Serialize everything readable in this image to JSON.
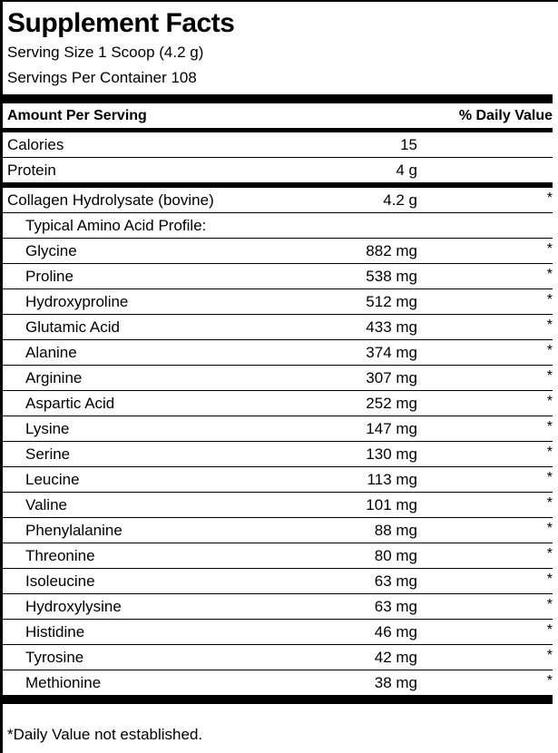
{
  "label": {
    "title": "Supplement Facts",
    "serving_size": "Serving Size 1 Scoop (4.2 g)",
    "servings_per_container": "Servings Per Container 108",
    "column_headers": {
      "left": "Amount Per Serving",
      "right": "% Daily Value"
    },
    "rows": [
      {
        "name": "Calories",
        "amount": "15",
        "dv": "",
        "indent": false,
        "after": "thin"
      },
      {
        "name": "Protein",
        "amount": "4 g",
        "dv": "",
        "indent": false,
        "after": "thick"
      },
      {
        "name": "Collagen Hydrolysate (bovine)",
        "amount": "4.2 g",
        "dv": "*",
        "indent": false,
        "after": "thin"
      },
      {
        "name": "Typical Amino Acid Profile:",
        "amount": "",
        "dv": "",
        "indent": true,
        "after": "thin"
      },
      {
        "name": "Glycine",
        "amount": "882 mg",
        "dv": "*",
        "indent": true,
        "after": "thin"
      },
      {
        "name": "Proline",
        "amount": "538 mg",
        "dv": "*",
        "indent": true,
        "after": "thin"
      },
      {
        "name": "Hydroxyproline",
        "amount": "512 mg",
        "dv": "*",
        "indent": true,
        "after": "thin"
      },
      {
        "name": "Glutamic Acid",
        "amount": "433 mg",
        "dv": "*",
        "indent": true,
        "after": "thin"
      },
      {
        "name": "Alanine",
        "amount": "374 mg",
        "dv": "*",
        "indent": true,
        "after": "thin"
      },
      {
        "name": "Arginine",
        "amount": "307 mg",
        "dv": "*",
        "indent": true,
        "after": "thin"
      },
      {
        "name": "Aspartic Acid",
        "amount": "252 mg",
        "dv": "*",
        "indent": true,
        "after": "thin"
      },
      {
        "name": "Lysine",
        "amount": "147 mg",
        "dv": "*",
        "indent": true,
        "after": "thin"
      },
      {
        "name": "Serine",
        "amount": "130 mg",
        "dv": "*",
        "indent": true,
        "after": "thin"
      },
      {
        "name": "Leucine",
        "amount": "113 mg",
        "dv": "*",
        "indent": true,
        "after": "thin"
      },
      {
        "name": "Valine",
        "amount": "101 mg",
        "dv": "*",
        "indent": true,
        "after": "thin"
      },
      {
        "name": "Phenylalanine",
        "amount": "88 mg",
        "dv": "*",
        "indent": true,
        "after": "thin"
      },
      {
        "name": "Threonine",
        "amount": "80 mg",
        "dv": "*",
        "indent": true,
        "after": "thin"
      },
      {
        "name": "Isoleucine",
        "amount": "63 mg",
        "dv": "*",
        "indent": true,
        "after": "thin"
      },
      {
        "name": "Hydroxylysine",
        "amount": "63 mg",
        "dv": "*",
        "indent": true,
        "after": "thin"
      },
      {
        "name": "Histidine",
        "amount": "46 mg",
        "dv": "*",
        "indent": true,
        "after": "thin"
      },
      {
        "name": "Tyrosine",
        "amount": "42 mg",
        "dv": "*",
        "indent": true,
        "after": "thin"
      },
      {
        "name": "Methionine",
        "amount": "38 mg",
        "dv": "*",
        "indent": true,
        "after": "bar"
      }
    ],
    "footnote": "*Daily Value not established.",
    "colors": {
      "ink": "#000000",
      "background": "#ffffff"
    }
  }
}
